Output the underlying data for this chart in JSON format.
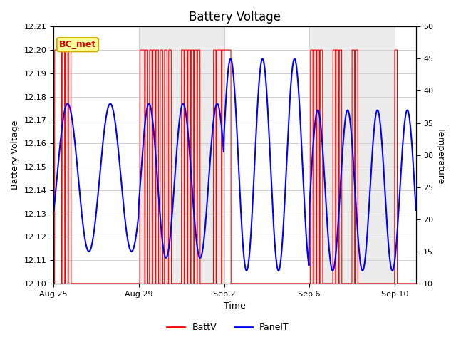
{
  "title": "Battery Voltage",
  "xlabel": "Time",
  "ylabel_left": "Battery Voltage",
  "ylabel_right": "Temperature",
  "ylim_left": [
    12.1,
    12.21
  ],
  "ylim_right": [
    10,
    50
  ],
  "yticks_left": [
    12.1,
    12.11,
    12.12,
    12.13,
    12.14,
    12.15,
    12.16,
    12.17,
    12.18,
    12.19,
    12.2,
    12.21
  ],
  "yticks_right": [
    10,
    15,
    20,
    25,
    30,
    35,
    40,
    45,
    50
  ],
  "grid_color": "#d0d0d0",
  "background_color": "#ffffff",
  "plot_bg_color": "#ffffff",
  "legend_label_battv": "BattV",
  "legend_label_panelt": "PanelT",
  "battv_color": "#ff0000",
  "panelt_color": "#0000ff",
  "annotation_text": "BC_met",
  "annotation_color": "#cc0000",
  "annotation_bg": "#ffff99",
  "annotation_border": "#ccaa00",
  "band_color": "#e0e0e0",
  "band_alpha": 0.6,
  "band_ranges": [
    [
      4,
      8
    ],
    [
      12,
      16
    ]
  ],
  "xtick_positions": [
    0,
    4,
    8,
    12,
    16
  ],
  "xtick_labels": [
    "Aug 25",
    "Aug 29",
    "Sep 2",
    "Sep 6",
    "Sep 10"
  ],
  "n_days": 17
}
